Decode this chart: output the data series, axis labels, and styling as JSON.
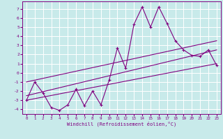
{
  "title": "",
  "xlabel": "Windchill (Refroidissement éolien,°C)",
  "background_color": "#c8eaea",
  "line_color": "#800080",
  "grid_color": "#ffffff",
  "x_data": [
    0,
    1,
    2,
    3,
    4,
    5,
    6,
    7,
    8,
    9,
    10,
    11,
    12,
    13,
    14,
    15,
    16,
    17,
    18,
    19,
    20,
    21,
    22,
    23
  ],
  "y_data": [
    -3,
    -1,
    -2.2,
    -3.8,
    -4.1,
    -3.5,
    -1.8,
    -3.6,
    -2.0,
    -3.5,
    -0.8,
    2.7,
    0.5,
    5.3,
    7.2,
    5.0,
    7.2,
    5.4,
    3.5,
    2.5,
    1.9,
    1.8,
    2.5,
    0.8
  ],
  "xlim": [
    -0.5,
    23.5
  ],
  "ylim": [
    -4.5,
    7.8
  ],
  "yticks": [
    -4,
    -3,
    -2,
    -1,
    0,
    1,
    2,
    3,
    4,
    5,
    6,
    7
  ],
  "xticks": [
    0,
    1,
    2,
    3,
    4,
    5,
    6,
    7,
    8,
    9,
    10,
    11,
    12,
    13,
    14,
    15,
    16,
    17,
    18,
    19,
    20,
    21,
    22,
    23
  ],
  "reg_lines": [
    [
      -1.0,
      3.5
    ],
    [
      -2.5,
      2.5
    ],
    [
      -3.0,
      1.0
    ]
  ]
}
